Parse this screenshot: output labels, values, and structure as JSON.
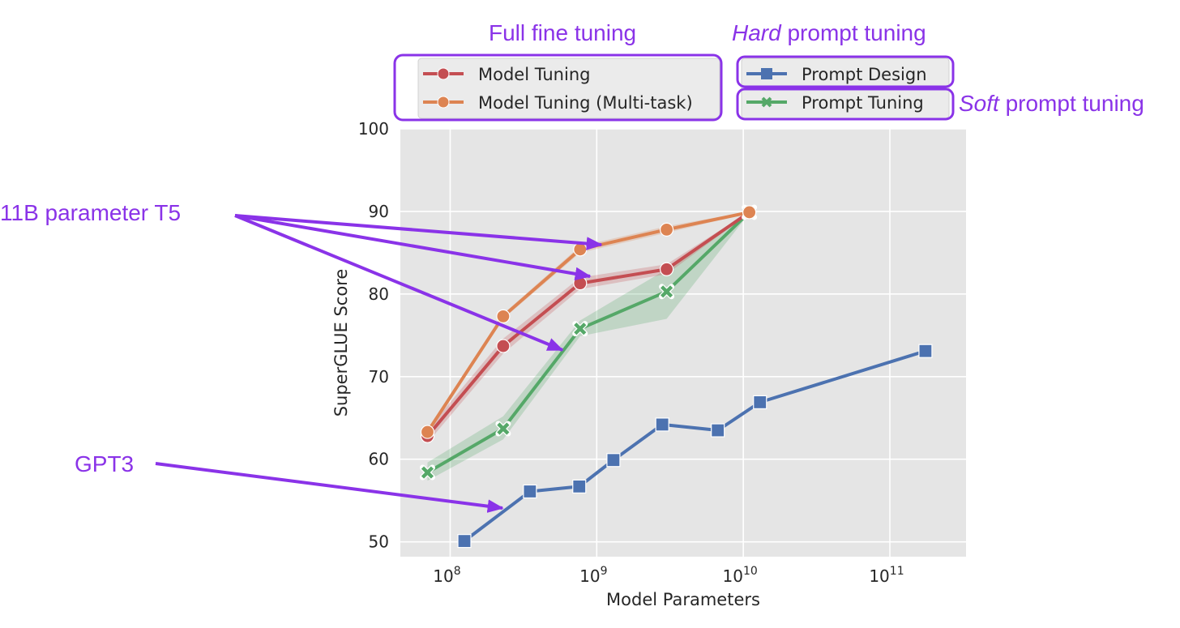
{
  "chart_data": {
    "type": "line",
    "title": "",
    "xlabel": "Model Parameters",
    "ylabel": "SuperGLUE Score",
    "xscale": "log",
    "xlim_log10": [
      7.66,
      11.52
    ],
    "ylim": [
      48.2,
      100
    ],
    "yticks": [
      50,
      60,
      70,
      80,
      90,
      100
    ],
    "ytick_labels": [
      "50",
      "60",
      "70",
      "80",
      "90",
      "100"
    ],
    "xticks_log10": [
      8,
      9,
      10,
      11
    ],
    "xtick_labels": [
      {
        "base": "10",
        "exp": "8"
      },
      {
        "base": "10",
        "exp": "9"
      },
      {
        "base": "10",
        "exp": "10"
      },
      {
        "base": "10",
        "exp": "11"
      }
    ],
    "grid": true,
    "legend_position": "top, outside plot area, two groups",
    "series": [
      {
        "name": "Model Tuning",
        "color": "#c44e52",
        "marker": "circle",
        "x": [
          70000000.0,
          230000000.0,
          770000000.0,
          3000000000.0,
          11000000000.0
        ],
        "values": [
          62.8,
          73.7,
          81.3,
          83.0,
          89.9
        ],
        "band_lower": [
          62.0,
          72.8,
          80.6,
          82.4,
          89.8
        ],
        "band_upper": [
          63.6,
          74.6,
          82.0,
          83.6,
          90.0
        ]
      },
      {
        "name": "Model Tuning (Multi-task)",
        "color": "#dd8452",
        "marker": "circle",
        "x": [
          70000000.0,
          230000000.0,
          770000000.0,
          3000000000.0,
          11000000000.0
        ],
        "values": [
          63.3,
          77.3,
          85.4,
          87.8,
          89.9
        ],
        "band_lower": [
          63.0,
          77.0,
          85.0,
          87.4,
          89.8
        ],
        "band_upper": [
          63.6,
          77.6,
          85.8,
          88.2,
          90.0
        ]
      },
      {
        "name": "Prompt Design",
        "color": "#4c72b0",
        "marker": "square",
        "x": [
          125000000.0,
          350000000.0,
          760000000.0,
          1300000000.0,
          2800000000.0,
          6700000000.0,
          13000000000.0,
          175000000000.0
        ],
        "values": [
          50.1,
          56.1,
          56.7,
          59.9,
          64.2,
          63.5,
          66.9,
          73.1
        ]
      },
      {
        "name": "Prompt Tuning",
        "color": "#55a868",
        "marker": "x",
        "x": [
          70000000.0,
          230000000.0,
          770000000.0,
          3000000000.0,
          11000000000.0
        ],
        "values": [
          58.4,
          63.7,
          75.8,
          80.3,
          89.9
        ],
        "band_lower": [
          57.4,
          62.4,
          74.9,
          77.0,
          89.8
        ],
        "band_upper": [
          59.6,
          65.2,
          76.8,
          83.0,
          90.0
        ]
      }
    ],
    "annotations": [
      {
        "text": "Full fine tuning",
        "target": "legend group: Model Tuning, Model Tuning (Multi-task)"
      },
      {
        "text_italic": "Hard",
        "text": " prompt tuning",
        "target": "legend: Prompt Design"
      },
      {
        "text_italic": "Soft",
        "text": " prompt tuning",
        "target": "legend: Prompt Tuning"
      },
      {
        "text": "11B parameter T5",
        "arrows_to": [
          "Model Tuning (Multi-task) ~1e9",
          "Model Tuning ~1e9",
          "Prompt Tuning ~7e8"
        ]
      },
      {
        "text": "GPT3",
        "arrows_to": [
          "Prompt Design ~2.3e8"
        ]
      }
    ]
  },
  "legend": {
    "full_fine_tuning": [
      "Model Tuning",
      "Model Tuning (Multi-task)"
    ],
    "prompt": [
      "Prompt Design",
      "Prompt Tuning"
    ]
  },
  "annotations_text": {
    "full_fine_tuning": "Full fine tuning",
    "hard_italic": "Hard",
    "hard_rest": " prompt tuning",
    "soft_italic": "Soft",
    "soft_rest": " prompt tuning",
    "t5": "11B parameter T5",
    "gpt3": "GPT3"
  },
  "colors": {
    "annotation": "#8a33e8",
    "plot_bg": "#e5e5e5",
    "grid": "#ffffff",
    "legend_bg": "#eaeaf2"
  }
}
